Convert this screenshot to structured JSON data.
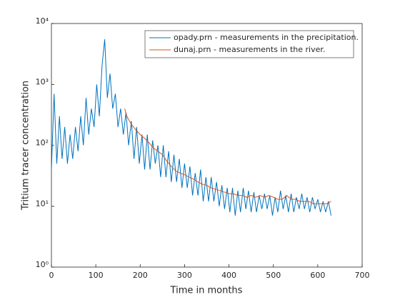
{
  "chart_data": {
    "type": "line",
    "yscale": "log",
    "xlabel": "Time in months",
    "ylabel": "Tritium tracer concentration",
    "xlim": [
      0,
      700
    ],
    "xticks": [
      0,
      100,
      200,
      300,
      400,
      500,
      600,
      700
    ],
    "ylim": [
      1,
      10000
    ],
    "yticks": [
      {
        "value": 1,
        "label": "10⁰"
      },
      {
        "value": 10,
        "label": "10¹"
      },
      {
        "value": 100,
        "label": "10²"
      },
      {
        "value": 1000,
        "label": "10³"
      },
      {
        "value": 10000,
        "label": "10⁴"
      }
    ],
    "legend": "upper right",
    "series": [
      {
        "name": "opady.prn - measurements in the precipitation.",
        "color": "#0072bd",
        "x": [
          0,
          6,
          12,
          18,
          24,
          30,
          36,
          42,
          48,
          54,
          60,
          66,
          72,
          78,
          84,
          90,
          96,
          102,
          108,
          114,
          120,
          126,
          132,
          138,
          144,
          150,
          156,
          162,
          168,
          174,
          180,
          186,
          192,
          198,
          204,
          210,
          216,
          222,
          228,
          234,
          240,
          246,
          252,
          258,
          264,
          270,
          276,
          282,
          288,
          294,
          300,
          306,
          312,
          318,
          324,
          330,
          336,
          342,
          348,
          354,
          360,
          366,
          372,
          378,
          384,
          390,
          396,
          402,
          408,
          414,
          420,
          426,
          432,
          438,
          444,
          450,
          456,
          462,
          468,
          474,
          480,
          486,
          492,
          498,
          504,
          510,
          516,
          522,
          528,
          534,
          540,
          546,
          552,
          558,
          564,
          570,
          576,
          582,
          588,
          594,
          600,
          606,
          612,
          618,
          624,
          630
        ],
        "values": [
          40,
          700,
          50,
          300,
          60,
          200,
          50,
          150,
          60,
          200,
          80,
          300,
          100,
          600,
          150,
          400,
          200,
          1000,
          300,
          2000,
          5500,
          600,
          1500,
          400,
          700,
          200,
          400,
          150,
          350,
          100,
          250,
          60,
          200,
          50,
          150,
          40,
          150,
          40,
          120,
          50,
          100,
          30,
          100,
          30,
          80,
          25,
          70,
          25,
          60,
          20,
          50,
          20,
          45,
          15,
          35,
          15,
          40,
          12,
          30,
          12,
          30,
          12,
          25,
          10,
          22,
          9,
          20,
          8,
          20,
          7,
          18,
          8,
          20,
          9,
          18,
          8,
          17,
          8,
          15,
          9,
          16,
          9,
          15,
          7,
          14,
          8,
          18,
          9,
          15,
          8,
          16,
          8,
          14,
          9,
          16,
          9,
          14,
          8,
          14,
          9,
          13,
          8,
          12,
          8,
          12,
          7
        ]
      },
      {
        "name": "dunaj.prn - measurements in the river.",
        "color": "#d95319",
        "x": [
          165,
          170,
          180,
          190,
          200,
          210,
          220,
          230,
          240,
          250,
          260,
          270,
          280,
          290,
          300,
          310,
          320,
          330,
          340,
          350,
          360,
          370,
          380,
          390,
          400,
          410,
          420,
          430,
          440,
          450,
          460,
          470,
          480,
          490,
          500,
          510,
          520,
          530,
          540,
          550,
          560,
          570,
          580,
          590,
          600,
          610,
          620,
          630
        ],
        "values": [
          400,
          300,
          220,
          180,
          150,
          130,
          110,
          90,
          80,
          70,
          55,
          45,
          38,
          35,
          33,
          30,
          28,
          25,
          23,
          22,
          20,
          19,
          18,
          17,
          16,
          16,
          15,
          15,
          14,
          15,
          14,
          15,
          14,
          15,
          14,
          13,
          13,
          15,
          13,
          13,
          12,
          12,
          12,
          11,
          11,
          11,
          11,
          12
        ]
      }
    ]
  }
}
